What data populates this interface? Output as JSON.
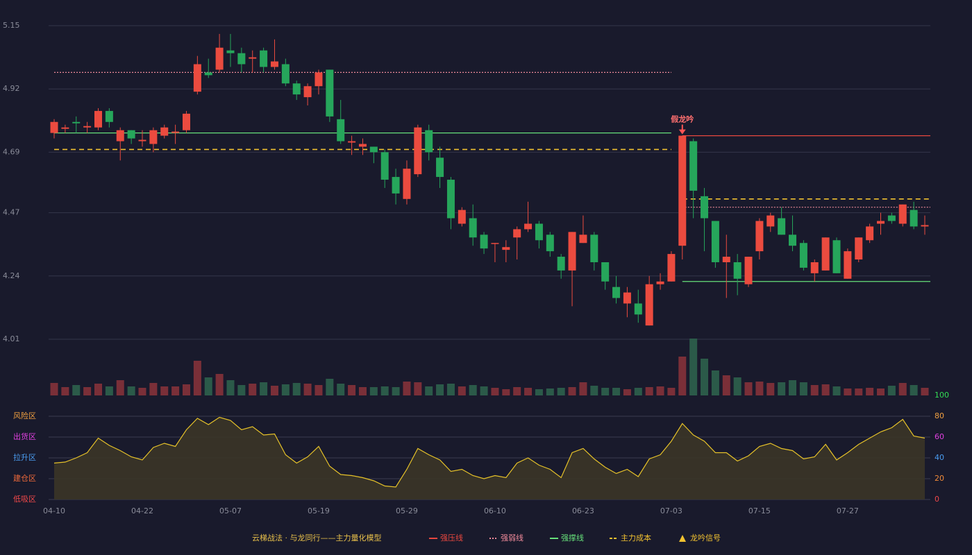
{
  "chart_data": {
    "type": "candlestick",
    "categories": [
      "04-10",
      null,
      null,
      null,
      null,
      null,
      null,
      null,
      "04-22",
      null,
      null,
      null,
      null,
      null,
      null,
      null,
      "05-07",
      null,
      null,
      null,
      null,
      null,
      null,
      null,
      "05-19",
      null,
      null,
      null,
      null,
      null,
      null,
      null,
      "05-29",
      null,
      null,
      null,
      null,
      null,
      null,
      null,
      "06-10",
      null,
      null,
      null,
      null,
      null,
      null,
      null,
      "06-23",
      null,
      null,
      null,
      null,
      null,
      null,
      null,
      "07-03",
      null,
      null,
      null,
      null,
      null,
      null,
      null,
      "07-15",
      null,
      null,
      null,
      null,
      null,
      null,
      null,
      "07-27",
      null,
      null,
      null,
      null,
      null,
      null,
      null
    ],
    "open": [
      4.76,
      4.775,
      4.8,
      4.78,
      4.78,
      4.84,
      4.73,
      4.77,
      4.73,
      4.72,
      4.75,
      4.76,
      4.77,
      4.91,
      4.98,
      4.99,
      5.06,
      5.05,
      5.03,
      5.06,
      5.0,
      5.01,
      4.94,
      4.89,
      4.93,
      4.99,
      4.81,
      4.725,
      4.71,
      4.71,
      4.69,
      4.6,
      4.52,
      4.61,
      4.77,
      4.67,
      4.59,
      4.43,
      4.45,
      4.39,
      4.36,
      4.335,
      4.38,
      4.41,
      4.43,
      4.39,
      4.31,
      4.26,
      4.36,
      4.39,
      4.29,
      4.2,
      4.14,
      4.14,
      4.06,
      4.21,
      4.22,
      4.35,
      4.73,
      4.53,
      4.44,
      4.29,
      4.29,
      4.21,
      4.33,
      4.42,
      4.45,
      4.39,
      4.36,
      4.25,
      4.26,
      4.37,
      4.23,
      4.3,
      4.37,
      4.43,
      4.46,
      4.43,
      4.48,
      4.42
    ],
    "high": [
      4.81,
      4.79,
      4.82,
      4.8,
      4.85,
      4.85,
      4.78,
      4.77,
      4.77,
      4.78,
      4.79,
      4.79,
      4.84,
      5.04,
      5.03,
      5.12,
      5.12,
      5.07,
      5.06,
      5.07,
      5.1,
      5.03,
      4.95,
      4.94,
      4.99,
      4.99,
      4.88,
      4.75,
      4.74,
      4.71,
      4.7,
      4.63,
      4.66,
      4.79,
      4.79,
      4.71,
      4.6,
      4.49,
      4.5,
      4.4,
      4.36,
      4.37,
      4.42,
      4.51,
      4.44,
      4.4,
      4.32,
      4.4,
      4.46,
      4.4,
      4.29,
      4.24,
      4.2,
      4.19,
      4.24,
      4.25,
      4.33,
      4.75,
      4.74,
      4.56,
      4.44,
      4.39,
      4.32,
      4.31,
      4.45,
      4.47,
      4.49,
      4.46,
      4.37,
      4.3,
      4.38,
      4.38,
      4.34,
      4.38,
      4.43,
      4.47,
      4.47,
      4.5,
      4.51,
      4.46
    ],
    "low": [
      4.74,
      4.76,
      4.76,
      4.76,
      4.77,
      4.78,
      4.66,
      4.72,
      4.71,
      4.69,
      4.74,
      4.72,
      4.76,
      4.9,
      4.96,
      4.98,
      5.0,
      4.98,
      4.98,
      4.98,
      4.99,
      4.93,
      4.88,
      4.86,
      4.9,
      4.8,
      4.72,
      4.68,
      4.68,
      4.65,
      4.56,
      4.5,
      4.5,
      4.6,
      4.66,
      4.56,
      4.41,
      4.42,
      4.35,
      4.32,
      4.29,
      4.29,
      4.3,
      4.4,
      4.34,
      4.31,
      4.23,
      4.13,
      4.36,
      4.26,
      4.19,
      4.14,
      4.09,
      4.07,
      4.06,
      4.19,
      4.22,
      4.3,
      4.45,
      4.33,
      4.27,
      4.16,
      4.17,
      4.2,
      4.3,
      4.4,
      4.39,
      4.33,
      4.26,
      4.22,
      4.26,
      4.25,
      4.23,
      4.29,
      4.36,
      4.39,
      4.43,
      4.42,
      4.41,
      4.39
    ],
    "close": [
      4.8,
      4.78,
      4.795,
      4.785,
      4.84,
      4.8,
      4.77,
      4.74,
      4.735,
      4.77,
      4.78,
      4.765,
      4.83,
      5.01,
      4.97,
      5.07,
      5.05,
      5.01,
      5.035,
      5.0,
      5.02,
      4.94,
      4.9,
      4.93,
      4.98,
      4.82,
      4.73,
      4.73,
      4.72,
      4.69,
      4.59,
      4.54,
      4.63,
      4.78,
      4.69,
      4.6,
      4.45,
      4.48,
      4.38,
      4.34,
      4.36,
      4.345,
      4.41,
      4.43,
      4.37,
      4.33,
      4.26,
      4.4,
      4.39,
      4.29,
      4.22,
      4.16,
      4.18,
      4.1,
      4.21,
      4.22,
      4.32,
      4.75,
      4.55,
      4.45,
      4.29,
      4.31,
      4.23,
      4.31,
      4.44,
      4.46,
      4.39,
      4.35,
      4.27,
      4.29,
      4.38,
      4.25,
      4.33,
      4.38,
      4.42,
      4.44,
      4.44,
      4.5,
      4.42,
      4.425
    ],
    "volume": [
      18,
      12,
      15,
      12,
      17,
      13,
      22,
      13,
      11,
      18,
      13,
      13,
      16,
      50,
      26,
      31,
      22,
      15,
      17,
      19,
      14,
      16,
      18,
      17,
      15,
      24,
      17,
      15,
      12,
      12,
      13,
      12,
      20,
      19,
      13,
      16,
      17,
      13,
      15,
      13,
      11,
      9,
      12,
      11,
      9,
      10,
      11,
      12,
      19,
      14,
      11,
      11,
      9,
      11,
      12,
      13,
      11,
      56,
      82,
      53,
      36,
      29,
      26,
      19,
      20,
      18,
      19,
      22,
      19,
      15,
      16,
      13,
      10,
      10,
      11,
      10,
      14,
      18,
      15,
      11
    ],
    "ylim": [
      4.01,
      5.15
    ],
    "yticks": [
      5.15,
      4.92,
      4.69,
      4.47,
      4.24,
      4.01
    ],
    "colors": {
      "up": "#eb4b3f",
      "down": "#26a65b",
      "up_volume": "#7a2f38",
      "down_volume": "#2b5a49"
    },
    "annotation": {
      "text": "假龙吟",
      "index": 57
    },
    "legend_title": "云梯战法 · 与龙同行——主力量化模型",
    "legend": [
      {
        "name": "强压线",
        "color": "#e8473f",
        "style": "solid"
      },
      {
        "name": "强弱线",
        "color": "#f08a9a",
        "style": "dotted"
      },
      {
        "name": "强撑线",
        "color": "#66e07a",
        "style": "solid"
      },
      {
        "name": "主力成本",
        "color": "#f2c230",
        "style": "dashed"
      },
      {
        "name": "龙吟信号",
        "color": "#f2c230",
        "style": "triangle"
      }
    ],
    "levels": [
      {
        "line": 1,
        "value": 4.98,
        "from": 0,
        "to": 56
      },
      {
        "line": 2,
        "value": 4.76,
        "from": 0,
        "to": 56
      },
      {
        "line": 3,
        "value": 4.7,
        "from": 0,
        "to": 56
      },
      {
        "line": 0,
        "value": 4.75,
        "from": 57,
        "to": 79
      },
      {
        "line": 3,
        "value": 4.52,
        "from": 57,
        "to": 79
      },
      {
        "line": 1,
        "value": 4.49,
        "from": 57,
        "to": 79
      },
      {
        "line": 2,
        "value": 4.22,
        "from": 57,
        "to": 79
      }
    ],
    "indicator": {
      "values": [
        35,
        36,
        40,
        45,
        59,
        52,
        47,
        41,
        38,
        50,
        54,
        51,
        67,
        78,
        72,
        79,
        76,
        67,
        70,
        62,
        63,
        43,
        35,
        41,
        51,
        32,
        24,
        23,
        21,
        18,
        13,
        12,
        29,
        49,
        43,
        38,
        27,
        29,
        23,
        20,
        23,
        21,
        35,
        40,
        33,
        29,
        21,
        45,
        49,
        39,
        31,
        25,
        29,
        22,
        39,
        43,
        56,
        73,
        62,
        56,
        45,
        45,
        37,
        42,
        51,
        54,
        49,
        47,
        39,
        41,
        53,
        38,
        45,
        53,
        59,
        65,
        69,
        77,
        61,
        59
      ],
      "color": "#e6c229",
      "ylim": [
        0,
        100
      ],
      "yticks": [
        0,
        20,
        40,
        60,
        80,
        100
      ],
      "ytick_colors": [
        "#f0484a",
        "#f08a3a",
        "#4a9cf0",
        "#e040e0",
        "#f0a040",
        "#33dd55"
      ],
      "zones": [
        {
          "label": "风险区",
          "value": 80,
          "color": "#f0a040"
        },
        {
          "label": "出货区",
          "value": 60,
          "color": "#e040e0"
        },
        {
          "label": "拉升区",
          "value": 40,
          "color": "#4a9cf0"
        },
        {
          "label": "建仓区",
          "value": 20,
          "color": "#f06a3a"
        },
        {
          "label": "低吸区",
          "value": 0,
          "color": "#f0484a"
        }
      ]
    }
  }
}
